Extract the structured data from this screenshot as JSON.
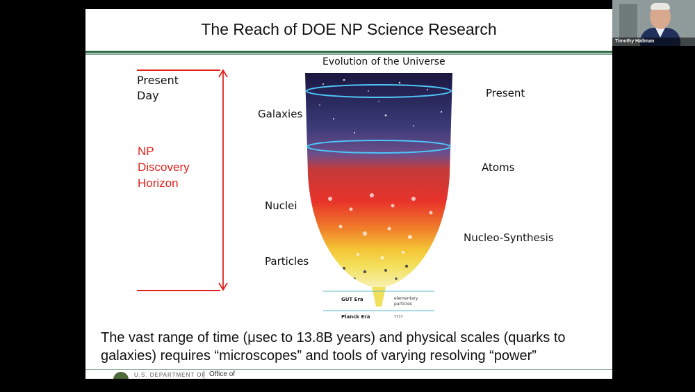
{
  "slide": {
    "title": "The Reach of DOE NP Science Research",
    "present_day_line1": "Present",
    "present_day_line2": "Day",
    "horizon_line1": "NP",
    "horizon_line2": "Discovery",
    "horizon_line3": "Horizon",
    "cone_title": "Evolution of the Universe",
    "left_labels": [
      "Galaxies",
      "Nuclei",
      "Particles"
    ],
    "right_labels": [
      "Present",
      "Atoms",
      "Nucleo-Synthesis"
    ],
    "cone_era_labels": [
      "GUT Era",
      "Planck Era"
    ],
    "cone_small_labels": [
      "elementary",
      "particles",
      "????"
    ],
    "bottom_text": "The vast range of time (μsec to 13.8B years) and physical scales (quarks to galaxies) requires “microscopes” and tools of varying resolving “power”",
    "footer_text": "U.S. DEPARTMENT OF",
    "footer_office": "Office of"
  },
  "participant": {
    "name": "Timothy Hallman"
  },
  "colors": {
    "accent_red": "#e3211c",
    "rule_green": "#1f5c3c"
  }
}
